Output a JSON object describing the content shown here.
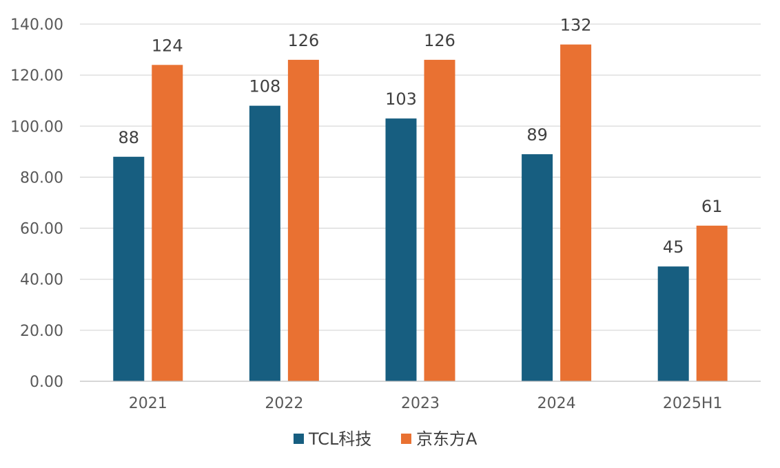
{
  "chart_data": {
    "type": "bar",
    "title": "",
    "xlabel": "",
    "ylabel": "",
    "categories": [
      "2021",
      "2022",
      "2023",
      "2024",
      "2025H1"
    ],
    "series": [
      {
        "name": "TCL科技",
        "values": [
          88,
          108,
          103,
          89,
          45
        ],
        "color": "#175e80"
      },
      {
        "name": "京东方A",
        "values": [
          124,
          126,
          126,
          132,
          61
        ],
        "color": "#e97132"
      }
    ],
    "ylim": [
      0,
      140
    ],
    "yticks": [
      "0.00",
      "20.00",
      "40.00",
      "60.00",
      "80.00",
      "100.00",
      "120.00",
      "140.00"
    ],
    "grid": true,
    "legend": "bottom-center"
  }
}
